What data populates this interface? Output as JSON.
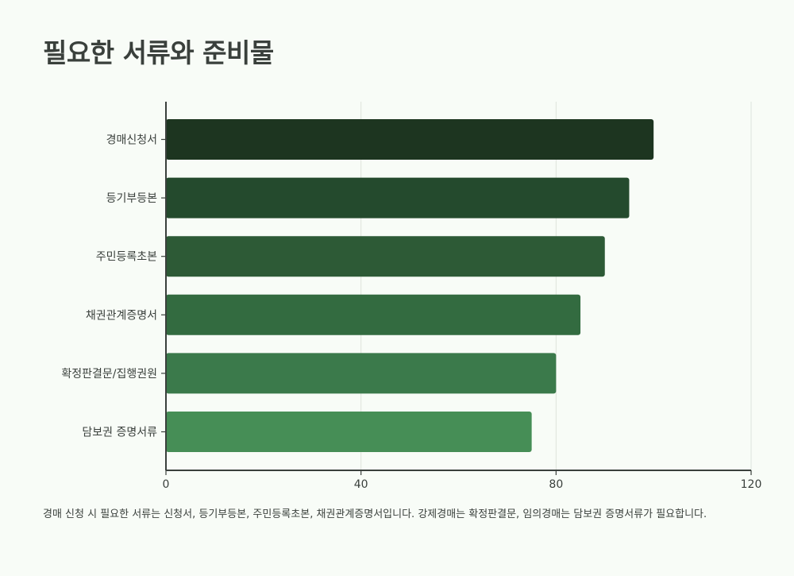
{
  "title": "필요한 서류와 준비물",
  "caption": "경매 신청 시 필요한 서류는 신청서, 등기부등본, 주민등록초본, 채권관계증명서입니다. 강제경매는 확정판결문, 임의경매는 담보권 증명서류가 필요합니다.",
  "chart_data": {
    "type": "bar",
    "orientation": "horizontal",
    "categories": [
      "경매신청서",
      "등기부등본",
      "주민등록초본",
      "채권관계증명서",
      "확정판결문/집행권원",
      "담보권 증명서류"
    ],
    "values": [
      100,
      95,
      90,
      85,
      80,
      75
    ],
    "colors": [
      "#1d3520",
      "#244a2d",
      "#2d5a36",
      "#336b40",
      "#3b7a4b",
      "#468e56"
    ],
    "xlim": [
      0,
      120
    ],
    "xticks": [
      0,
      40,
      80,
      120
    ],
    "grid": true
  }
}
